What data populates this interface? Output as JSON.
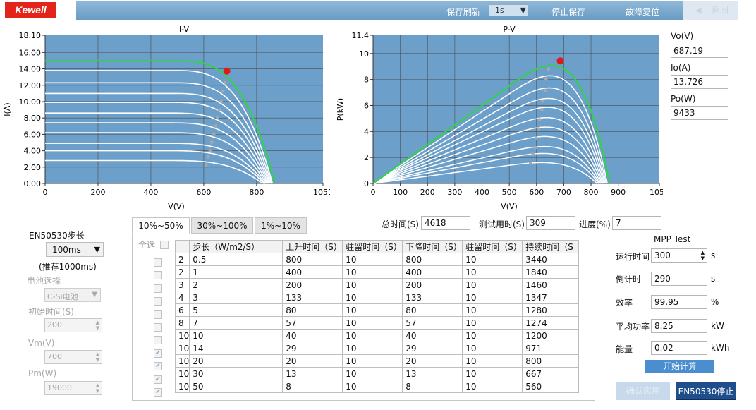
{
  "header": {
    "logo": "Kewell",
    "refresh_label": "保存刷新",
    "refresh_value": "1s",
    "stop_save": "停止保存",
    "fault_reset": "故障复位",
    "back": "返回"
  },
  "iv_chart": {
    "title": "I-V",
    "xlabel": "V(V)",
    "ylabel": "I(A)",
    "xticks": [
      "0",
      "200",
      "400",
      "600",
      "800",
      "1051"
    ],
    "yticks": [
      "0.00",
      "2.00",
      "4.00",
      "6.00",
      "8.00",
      "10.00",
      "12.00",
      "14.00",
      "16.00",
      "18.10"
    ]
  },
  "pv_chart": {
    "title": "P-V",
    "xlabel": "V(V)",
    "ylabel": "P(kW)",
    "xticks": [
      "0",
      "100",
      "200",
      "300",
      "400",
      "500",
      "600",
      "700",
      "800",
      "900",
      "1051"
    ],
    "yticks": [
      "0",
      "2",
      "4",
      "6",
      "8",
      "10",
      "11.4"
    ]
  },
  "chart_data": [
    {
      "type": "line",
      "title": "I-V",
      "xlabel": "V(V)",
      "ylabel": "I(A)",
      "xlim": [
        0,
        1051
      ],
      "ylim": [
        0,
        18.1
      ],
      "mpp": {
        "x": 687.19,
        "y": 13.726
      },
      "series": [
        {
          "isc": 15.0,
          "voc": 868,
          "vknee": 690
        },
        {
          "isc": 13.8,
          "voc": 860,
          "vknee": 686
        },
        {
          "isc": 12.3,
          "voc": 856,
          "vknee": 683
        },
        {
          "isc": 11.0,
          "voc": 852,
          "vknee": 679
        },
        {
          "isc": 9.9,
          "voc": 848,
          "vknee": 676
        },
        {
          "isc": 8.6,
          "voc": 844,
          "vknee": 672
        },
        {
          "isc": 7.4,
          "voc": 840,
          "vknee": 669
        },
        {
          "isc": 6.2,
          "voc": 836,
          "vknee": 665
        },
        {
          "isc": 4.9,
          "voc": 832,
          "vknee": 662
        },
        {
          "isc": 4.0,
          "voc": 828,
          "vknee": 658
        },
        {
          "isc": 2.8,
          "voc": 822,
          "vknee": 654
        }
      ]
    },
    {
      "type": "line",
      "title": "P-V",
      "xlabel": "V(V)",
      "ylabel": "P(kW)",
      "xlim": [
        0,
        1051
      ],
      "ylim": [
        0,
        11.4
      ],
      "mpp": {
        "x": 687.19,
        "y": 9.433
      }
    }
  ],
  "readouts": {
    "vo_label": "Vo(V)",
    "vo_value": "687.19",
    "io_label": "Io(A)",
    "io_value": "13.726",
    "po_label": "Po(W)",
    "po_value": "9433"
  },
  "params": {
    "step_label": "EN50530步长",
    "step_value": "100ms",
    "step_hint": "(推荐1000ms)",
    "battery_label": "电池选择",
    "battery_value": "C-Si电池",
    "init_time_label": "初始时间(S)",
    "init_time_value": "200",
    "vm_label": "Vm(V)",
    "vm_value": "700",
    "pm_label": "Pm(W)",
    "pm_value": "19000"
  },
  "tabs": [
    "10%~50%",
    "30%~100%",
    "1%~10%"
  ],
  "select_all": "全选",
  "totals": {
    "total_label": "总时间(S)",
    "total_value": "4618",
    "used_label": "测试用时(S)",
    "used_value": "309",
    "progress_label": "进度(%)",
    "progress_value": "7"
  },
  "table": {
    "headers": [
      "",
      "步长（W/m2/S）",
      "上升时间（S）",
      "驻留时间（S）",
      "下降时间（S）",
      "驻留时间（S）",
      "持续时间（S"
    ],
    "rows": [
      {
        "checked": false,
        "cells": [
          "2",
          "0.5",
          "800",
          "10",
          "800",
          "10",
          "3440"
        ]
      },
      {
        "checked": false,
        "cells": [
          "2",
          "1",
          "400",
          "10",
          "400",
          "10",
          "1840"
        ]
      },
      {
        "checked": false,
        "cells": [
          "3",
          "2",
          "200",
          "10",
          "200",
          "10",
          "1460"
        ]
      },
      {
        "checked": false,
        "cells": [
          "4",
          "3",
          "133",
          "10",
          "133",
          "10",
          "1347"
        ]
      },
      {
        "checked": false,
        "cells": [
          "6",
          "5",
          "80",
          "10",
          "80",
          "10",
          "1280"
        ]
      },
      {
        "checked": false,
        "cells": [
          "8",
          "7",
          "57",
          "10",
          "57",
          "10",
          "1274"
        ]
      },
      {
        "checked": false,
        "cells": [
          "10",
          "10",
          "40",
          "10",
          "40",
          "10",
          "1200"
        ]
      },
      {
        "checked": true,
        "cells": [
          "10",
          "14",
          "29",
          "10",
          "29",
          "10",
          "971"
        ]
      },
      {
        "checked": true,
        "cells": [
          "10",
          "20",
          "20",
          "10",
          "20",
          "10",
          "800"
        ]
      },
      {
        "checked": true,
        "cells": [
          "10",
          "30",
          "13",
          "10",
          "13",
          "10",
          "667"
        ]
      },
      {
        "checked": true,
        "cells": [
          "10",
          "50",
          "8",
          "10",
          "8",
          "10",
          "560"
        ]
      }
    ]
  },
  "mpp_test": {
    "title": "MPP Test",
    "run_time_label": "运行时间",
    "run_time_value": "300",
    "run_time_unit": "s",
    "countdown_label": "倒计时",
    "countdown_value": "290",
    "countdown_unit": "s",
    "efficiency_label": "效率",
    "efficiency_value": "99.95",
    "efficiency_unit": "%",
    "avg_power_label": "平均功率",
    "avg_power_value": "8.25",
    "avg_power_unit": "kW",
    "energy_label": "能量",
    "energy_value": "0.02",
    "energy_unit": "kWh",
    "start_calc": "开始计算",
    "confirm_apply": "确认应用",
    "stop": "EN50530停止"
  }
}
